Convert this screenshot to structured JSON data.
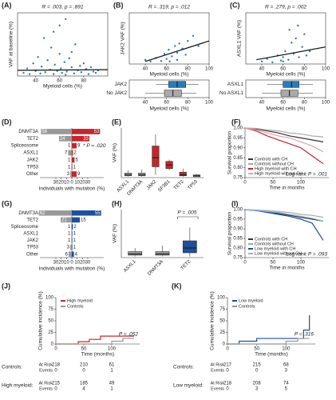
{
  "chart_data": [
    {
      "type": "scatter",
      "panel": "(A)",
      "annotation": "R = .003, p = .891",
      "x_label": "Myeloid cells (%)",
      "y_label": "VAF at baseline (%)",
      "xlim": [
        25,
        100
      ],
      "ylim": [
        0,
        100
      ],
      "xticks": [
        40,
        60,
        80
      ],
      "color": "#2b7bb9",
      "x": [
        30,
        33,
        35,
        38,
        40,
        42,
        44,
        45,
        47,
        48,
        50,
        52,
        53,
        55,
        56,
        58,
        60,
        61,
        62,
        64,
        65,
        66,
        68,
        70,
        72,
        73,
        75,
        77,
        78,
        80,
        82,
        84,
        86,
        88,
        90,
        92,
        55,
        60,
        70,
        65
      ],
      "y": [
        5,
        12,
        3,
        20,
        8,
        30,
        4,
        15,
        60,
        6,
        25,
        10,
        45,
        3,
        18,
        8,
        35,
        12,
        5,
        22,
        90,
        7,
        28,
        14,
        4,
        50,
        9,
        16,
        6,
        20,
        11,
        3,
        14,
        7,
        5,
        9,
        70,
        80,
        38,
        2
      ],
      "trend": {
        "x": [
          25,
          100
        ],
        "y": [
          9,
          10
        ],
        "color": "#111"
      }
    },
    {
      "type": "scatter",
      "panel": "(B)",
      "annotation": "R = .319, p = .012",
      "x_label": "Myeloid cells (%)",
      "y_label": "JAK2 VAF (%)",
      "xlim": [
        25,
        100
      ],
      "ylim": [
        0,
        100
      ],
      "xticks": [
        40,
        60,
        80,
        100
      ],
      "color": "#2b7bb9",
      "x": [
        40,
        45,
        50,
        55,
        58,
        60,
        62,
        65,
        68,
        70,
        72,
        75,
        78,
        80,
        85,
        90,
        63,
        70
      ],
      "y": [
        8,
        5,
        12,
        6,
        20,
        10,
        28,
        15,
        35,
        22,
        40,
        30,
        18,
        45,
        55,
        35,
        5,
        8
      ],
      "trend": {
        "x": [
          40,
          100
        ],
        "y": [
          5,
          45
        ],
        "color": "#111"
      },
      "boxes": {
        "categories": [
          "JAK2",
          "No JAK2"
        ],
        "colors": [
          "#2b7bb9",
          "#aaaaaa"
        ],
        "stats": [
          [
            50,
            62,
            70,
            78,
            90
          ],
          [
            40,
            58,
            66,
            74,
            88
          ]
        ]
      },
      "box_xticks": [
        40,
        60,
        80,
        100
      ],
      "box_x_label": "Myeloid cells (%)"
    },
    {
      "type": "scatter",
      "panel": "(C)",
      "annotation": "R = .279, p = .002",
      "x_label": "Myeloid cells (%)",
      "y_label": "ASXL1 VAF (%)",
      "xlim": [
        25,
        100
      ],
      "ylim": [
        0,
        60
      ],
      "xticks": [
        40,
        60,
        80,
        100
      ],
      "color": "#2b7bb9",
      "x": [
        40,
        45,
        50,
        55,
        58,
        60,
        62,
        65,
        68,
        70,
        72,
        75,
        78,
        80,
        82,
        85,
        66,
        74,
        60
      ],
      "y": [
        3,
        6,
        2,
        10,
        4,
        8,
        15,
        5,
        25,
        12,
        30,
        8,
        20,
        35,
        10,
        15,
        40,
        45,
        3
      ],
      "trend": {
        "x": [
          35,
          100
        ],
        "y": [
          5,
          20
        ],
        "color": "#111"
      },
      "boxes": {
        "categories": [
          "ASXL1",
          "No ASXL1"
        ],
        "colors": [
          "#2b7bb9",
          "#aaaaaa"
        ],
        "stats": [
          [
            45,
            60,
            68,
            75,
            88
          ],
          [
            40,
            58,
            66,
            74,
            88
          ]
        ]
      },
      "box_xticks": [
        40,
        60,
        80,
        100
      ],
      "box_x_label": "Myeloid cells (%)"
    },
    {
      "type": "bar",
      "panel": "(D)",
      "orientation": "horizontal",
      "categories": [
        "DNMT3A",
        "TET2",
        "Spliceosome",
        "ASXL1",
        "JAK2",
        "TP53",
        "Other"
      ],
      "series": [
        {
          "color": "#999999",
          "side": "left",
          "values": [
            58,
            24,
            1,
            7,
            1,
            1,
            3
          ]
        },
        {
          "color": "#c0282d",
          "side": "right",
          "values": [
            53,
            33,
            9,
            2,
            5,
            1,
            9
          ]
        }
      ],
      "xlim": [
        -60,
        60
      ],
      "xticks": [
        {
          "value": -30,
          "label": "30"
        },
        {
          "value": -20,
          "label": "20"
        },
        {
          "value": -10,
          "label": "10"
        },
        0,
        10,
        20,
        30
      ],
      "annotation": "* P = .020",
      "x_label": "Individuals with mutation (%)"
    },
    {
      "type": "box",
      "panel": "(E)",
      "y_label": "VAF (%)",
      "ylim": [
        0,
        55
      ],
      "categories": [
        "ASXL1",
        "DNMT3A",
        "JAK2",
        "SF3B1",
        "TET2",
        "TP53"
      ],
      "colors": [
        "#999999",
        "#999999",
        "#c0282d",
        "#c0282d",
        "#c0282d",
        "#999999"
      ],
      "stats": [
        [
          1,
          2,
          3,
          5,
          8
        ],
        [
          1,
          2,
          3,
          5,
          9
        ],
        [
          3,
          12,
          22,
          35,
          48
        ],
        [
          8,
          10,
          14,
          18,
          20
        ],
        [
          1,
          2,
          3,
          6,
          10
        ],
        [
          1,
          1,
          2,
          3,
          4
        ]
      ]
    },
    {
      "type": "line",
      "panel": "(F)",
      "x_label": "Time in months",
      "y_label": "Survival proportion",
      "xlim": [
        0,
        150
      ],
      "ylim": [
        0.75,
        1
      ],
      "xticks": [
        0,
        50,
        100
      ],
      "yticks": [
        0.75,
        {
          "value": 0.8,
          "label": "0.80"
        },
        {
          "value": 0.85,
          "label": "0.85"
        },
        {
          "value": 0.9,
          "label": "0.90"
        },
        {
          "value": 0.95,
          "label": "0.95"
        },
        {
          "value": 1,
          "label": "1.00"
        }
      ],
      "legend": "lower left",
      "annotation": "Log-rank P = .001",
      "series": [
        {
          "name": "Controls with CH",
          "color": "#333333",
          "x": [
            0,
            20,
            40,
            60,
            80,
            100,
            120,
            140
          ],
          "y": [
            1,
            0.995,
            0.985,
            0.975,
            0.96,
            0.95,
            0.94,
            0.93
          ]
        },
        {
          "name": "Controls without CH",
          "color": "#aaaaaa",
          "x": [
            0,
            20,
            40,
            60,
            80,
            100,
            120,
            140
          ],
          "y": [
            1,
            0.998,
            0.99,
            0.985,
            0.975,
            0.97,
            0.96,
            0.955
          ]
        },
        {
          "name": "High myeloid with CH",
          "color": "#c0282d",
          "x": [
            0,
            20,
            40,
            60,
            80,
            100,
            120,
            140
          ],
          "y": [
            1,
            0.985,
            0.96,
            0.94,
            0.92,
            0.9,
            0.86,
            0.82
          ]
        },
        {
          "name": "High myeloid without CH",
          "color": "#e8a0a0",
          "x": [
            0,
            20,
            40,
            60,
            80,
            100,
            120,
            140
          ],
          "y": [
            1,
            0.99,
            0.975,
            0.96,
            0.95,
            0.93,
            0.91,
            0.88
          ]
        }
      ]
    },
    {
      "type": "bar",
      "panel": "(G)",
      "orientation": "horizontal",
      "categories": [
        "DNMT3A",
        "TET2",
        "Spliceosome",
        "ASXL1",
        "JAK2",
        "TP53",
        "Other"
      ],
      "series": [
        {
          "color": "#999999",
          "side": "left",
          "values": [
            62,
            21,
            1,
            1,
            1,
            3,
            6
          ]
        },
        {
          "color": "#1f4e9c",
          "side": "right",
          "values": [
            55,
            15,
            2,
            1,
            1,
            1,
            4
          ]
        }
      ],
      "xlim": [
        -60,
        60
      ],
      "xticks": [
        {
          "value": -30,
          "label": "30"
        },
        {
          "value": -20,
          "label": "20"
        },
        {
          "value": -10,
          "label": "10"
        },
        0,
        10,
        20,
        30
      ],
      "x_label": "Individuals with mutation (%)"
    },
    {
      "type": "box",
      "panel": "(H)",
      "y_label": "VAF (%)",
      "ylim": [
        0,
        40
      ],
      "categories": [
        "ASXL1",
        "DNMT3A",
        "TET2"
      ],
      "colors": [
        "#999999",
        "#999999",
        "#1f4e9c"
      ],
      "stats": [
        [
          1,
          2,
          3,
          5,
          8
        ],
        [
          1,
          2,
          3,
          5,
          10
        ],
        [
          1,
          4,
          8,
          14,
          25
        ]
      ],
      "annotation": "P = .005"
    },
    {
      "type": "line",
      "panel": "(I)",
      "x_label": "Time in months",
      "y_label": "Survival proportion",
      "xlim": [
        0,
        150
      ],
      "ylim": [
        0.75,
        1
      ],
      "xticks": [
        0,
        50,
        100
      ],
      "yticks": [
        0.75,
        {
          "value": 0.8,
          "label": "0.80"
        },
        {
          "value": 0.85,
          "label": "0.85"
        },
        {
          "value": 0.9,
          "label": "0.90"
        },
        {
          "value": 0.95,
          "label": "0.95"
        },
        {
          "value": 1,
          "label": "1.00"
        }
      ],
      "legend": "lower left",
      "annotation": "Log-rank P = .093",
      "series": [
        {
          "name": "Controls with CH",
          "color": "#333333",
          "x": [
            0,
            20,
            40,
            60,
            80,
            100,
            120,
            140
          ],
          "y": [
            1,
            0.995,
            0.99,
            0.98,
            0.97,
            0.96,
            0.95,
            0.94
          ]
        },
        {
          "name": "Controls without CH",
          "color": "#aaaaaa",
          "x": [
            0,
            20,
            40,
            60,
            80,
            100,
            120,
            140
          ],
          "y": [
            1,
            0.998,
            0.995,
            0.99,
            0.985,
            0.975,
            0.97,
            0.96
          ]
        },
        {
          "name": "Low myeloid with CH",
          "color": "#1f4e9c",
          "x": [
            0,
            20,
            40,
            60,
            80,
            100,
            120,
            140
          ],
          "y": [
            1,
            0.995,
            0.985,
            0.975,
            0.965,
            0.95,
            0.93,
            0.84
          ]
        },
        {
          "name": "Low myeloid without CH",
          "color": "#8fb3d9",
          "x": [
            0,
            20,
            40,
            60,
            80,
            100,
            120,
            140
          ],
          "y": [
            1,
            0.997,
            0.99,
            0.985,
            0.975,
            0.965,
            0.955,
            0.94
          ]
        }
      ]
    },
    {
      "type": "line",
      "panel": "(J)",
      "x_label": "Time (months)",
      "y_label": "Cumulative incidence (%)",
      "xlim": [
        0,
        150
      ],
      "ylim": [
        0,
        100
      ],
      "xticks": [
        0,
        50,
        100
      ],
      "yticks": [
        0,
        25,
        50,
        75,
        100
      ],
      "legend": "upper left",
      "annotation": "P = .052",
      "series": [
        {
          "name": "High myeloid",
          "color": "#c0282d",
          "x": [
            0,
            40,
            40,
            60,
            60,
            80,
            80,
            140
          ],
          "y": [
            0,
            0,
            5,
            5,
            10,
            10,
            17,
            17
          ]
        },
        {
          "name": "Controls",
          "color": "#999999",
          "x": [
            0,
            100,
            100,
            120,
            120,
            140
          ],
          "y": [
            0,
            0,
            6,
            6,
            12,
            12
          ]
        }
      ],
      "risk_table": {
        "rows": [
          {
            "group": "Controls:",
            "at_risk_label": "At Risk",
            "events_label": "Events",
            "at_risk": [
              218,
              210,
              61
            ],
            "events": [
              0,
              0,
              1
            ]
          },
          {
            "group": "High myeloid:",
            "at_risk_label": "At Risk",
            "events_label": "Events",
            "at_risk": [
              215,
              185,
              49
            ],
            "events": [
              0,
              4,
              1
            ]
          }
        ]
      }
    },
    {
      "type": "line",
      "panel": "(K)",
      "x_label": "Time (months)",
      "y_label": "Cumulative incidence (%)",
      "xlim": [
        0,
        150
      ],
      "ylim": [
        0,
        100
      ],
      "xticks": [
        0,
        50,
        100
      ],
      "yticks": [
        0,
        25,
        50,
        75,
        100
      ],
      "legend": "upper left",
      "annotation": "P = .316",
      "series": [
        {
          "name": "Low myeloid",
          "color": "#1f4e9c",
          "x": [
            0,
            20,
            20,
            50,
            50,
            130,
            130,
            140,
            140
          ],
          "y": [
            0,
            0,
            6,
            6,
            12,
            12,
            30,
            30,
            62
          ]
        },
        {
          "name": "Controls",
          "color": "#999999",
          "x": [
            0,
            100,
            100,
            120,
            120,
            140
          ],
          "y": [
            0,
            0,
            6,
            6,
            12,
            12
          ]
        }
      ],
      "risk_table": {
        "rows": [
          {
            "group": "Controls:",
            "at_risk_label": "At Risk",
            "events_label": "Events",
            "at_risk": [
              217,
              215,
              68
            ],
            "events": [
              0,
              0,
              3
            ]
          },
          {
            "group": "Low myeloid:",
            "at_risk_label": "At Risk",
            "events_label": "Events",
            "at_risk": [
              218,
              208,
              74
            ],
            "events": [
              0,
              3,
              5
            ]
          }
        ]
      }
    }
  ]
}
